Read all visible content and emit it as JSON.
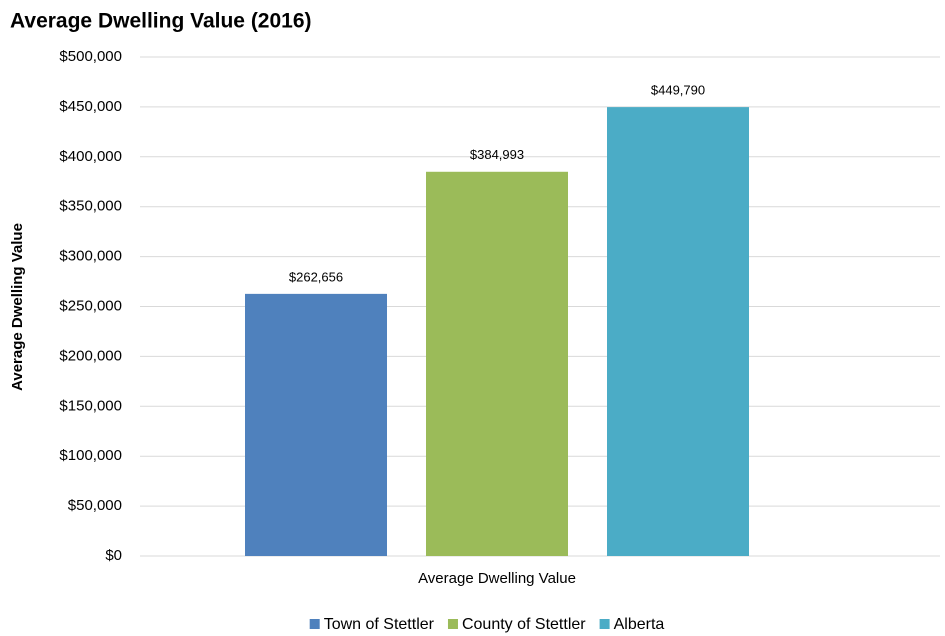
{
  "chart_data": {
    "type": "bar",
    "title": "Average Dwelling Value (2016)",
    "y_label": "Average Dwelling Value",
    "categories": [
      "Average Dwelling Value"
    ],
    "series": [
      {
        "name": "Town of Stettler",
        "color": "#4f81bd",
        "values": [
          262656
        ],
        "value_labels": [
          "$262,656"
        ]
      },
      {
        "name": "County of Stettler",
        "color": "#9bbb59",
        "values": [
          384993
        ],
        "value_labels": [
          "$384,993"
        ]
      },
      {
        "name": "Alberta",
        "color": "#4bacc6",
        "values": [
          449790
        ],
        "value_labels": [
          "$449,790"
        ]
      }
    ],
    "ylim": [
      0,
      500000
    ],
    "yticks": [
      {
        "value": 0,
        "label": "$0"
      },
      {
        "value": 50000,
        "label": "$50,000"
      },
      {
        "value": 100000,
        "label": "$100,000"
      },
      {
        "value": 150000,
        "label": "$150,000"
      },
      {
        "value": 200000,
        "label": "$200,000"
      },
      {
        "value": 250000,
        "label": "$250,000"
      },
      {
        "value": 300000,
        "label": "$300,000"
      },
      {
        "value": 350000,
        "label": "$350,000"
      },
      {
        "value": 400000,
        "label": "$400,000"
      },
      {
        "value": 450000,
        "label": "$450,000"
      },
      {
        "value": 500000,
        "label": "$500,000"
      }
    ],
    "grid": true,
    "legend": "bottom"
  }
}
